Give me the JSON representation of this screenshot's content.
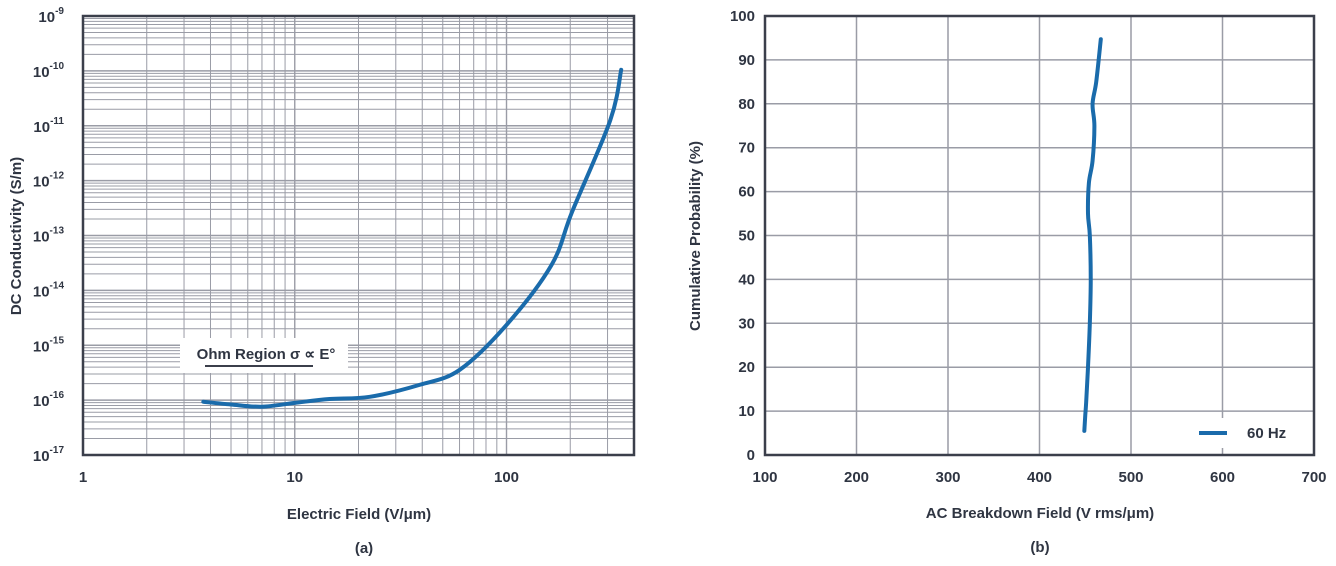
{
  "colors": {
    "line": "#1a6bab",
    "grid": "#9a9ca6",
    "axis": "#3b3f4b",
    "text": "#2f3542"
  },
  "chart_data": [
    {
      "type": "line",
      "caption": "(a)",
      "xlabel": "Electric Field (V/μm)",
      "ylabel": "DC Conductivity (S/m)",
      "xscale": "log",
      "yscale": "log",
      "xlim": [
        1,
        400
      ],
      "ylim": [
        1e-17,
        1e-09
      ],
      "xticks": [
        {
          "value": 1,
          "label": "1"
        },
        {
          "value": 10,
          "label": "10"
        },
        {
          "value": 100,
          "label": "100"
        }
      ],
      "yticks": [
        {
          "value": -9,
          "base": "10",
          "exp": "-9"
        },
        {
          "value": -10,
          "base": "10",
          "exp": "-10"
        },
        {
          "value": -11,
          "base": "10",
          "exp": "-11"
        },
        {
          "value": -12,
          "base": "10",
          "exp": "-12"
        },
        {
          "value": -13,
          "base": "10",
          "exp": "-13"
        },
        {
          "value": -14,
          "base": "10",
          "exp": "-14"
        },
        {
          "value": -15,
          "base": "10",
          "exp": "-15"
        },
        {
          "value": -16,
          "base": "10",
          "exp": "-16"
        },
        {
          "value": -17,
          "base": "10",
          "exp": "-17"
        }
      ],
      "grid": "major+minor",
      "annotation": "Ohm Region σ ∝ E°",
      "series": [
        {
          "name": "DC conductivity",
          "x": [
            3.7,
            5,
            7.0,
            10,
            14.6,
            22.6,
            39,
            60,
            100,
            163,
            204,
            309,
            348
          ],
          "y_log10": [
            -16.03,
            -16.08,
            -16.12,
            -16.05,
            -15.98,
            -15.94,
            -15.72,
            -15.45,
            -14.63,
            -13.54,
            -12.57,
            -10.9,
            -9.98
          ]
        }
      ]
    },
    {
      "type": "line",
      "caption": "(b)",
      "xlabel": "AC Breakdown Field (V rms/μm)",
      "ylabel": "Cumulative Probability (%)",
      "xlim": [
        100,
        700
      ],
      "ylim": [
        0,
        100
      ],
      "xticks": [
        100,
        200,
        300,
        400,
        500,
        600,
        700
      ],
      "yticks": [
        0,
        10,
        20,
        30,
        40,
        50,
        60,
        70,
        80,
        90,
        100
      ],
      "grid": "major",
      "legend": {
        "placement": "bottom-right",
        "entries": [
          "60 Hz"
        ]
      },
      "series": [
        {
          "name": "60 Hz",
          "x": [
            449,
            450,
            451,
            453,
            455,
            456,
            455,
            453,
            454,
            458,
            460,
            458,
            462,
            467
          ],
          "y": [
            5.5,
            9,
            12,
            20,
            30,
            40,
            50,
            55,
            62,
            67,
            75,
            80,
            85,
            94.7
          ]
        }
      ]
    }
  ]
}
